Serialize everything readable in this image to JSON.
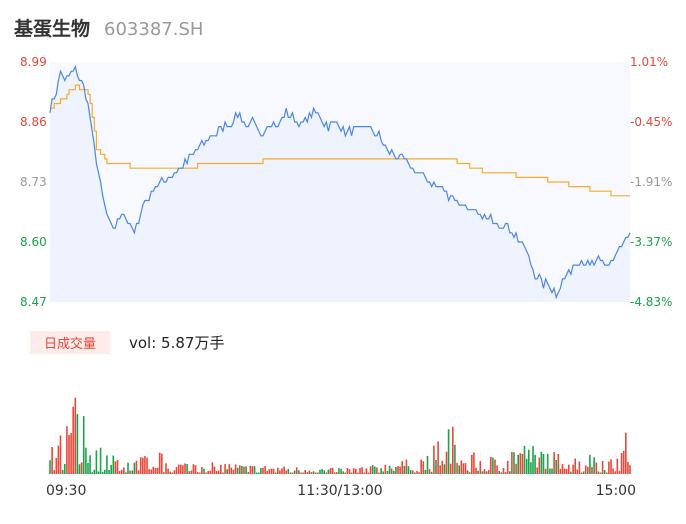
{
  "header": {
    "name": "基蛋生物",
    "code": "603387.SH"
  },
  "volume": {
    "tag": "日成交量",
    "text": "vol: 5.87万手"
  },
  "colors": {
    "price": "#4b86e6",
    "avg": "#f3ad2c",
    "up": "#e8473a",
    "down": "#1aa34a",
    "flat": "#999999"
  },
  "chart_data": {
    "type": "line",
    "title": "",
    "prev_close": 8.9,
    "ylim": [
      8.47,
      8.99
    ],
    "y_ticks": [
      "8.99",
      "8.86",
      "8.73",
      "8.60",
      "8.47"
    ],
    "pct_ticks": [
      "1.01%",
      "-0.45%",
      "-1.91%",
      "-3.37%",
      "-4.83%"
    ],
    "x_ticks": [
      "09:30",
      "11:30/13:00",
      "15:00"
    ],
    "price_keyframes": [
      [
        0,
        8.89
      ],
      [
        3,
        8.93
      ],
      [
        5,
        8.97
      ],
      [
        7,
        8.95
      ],
      [
        9,
        8.96
      ],
      [
        12,
        8.97
      ],
      [
        15,
        8.95
      ],
      [
        18,
        8.9
      ],
      [
        21,
        8.8
      ],
      [
        24,
        8.72
      ],
      [
        28,
        8.64
      ],
      [
        31,
        8.63
      ],
      [
        34,
        8.67
      ],
      [
        36,
        8.65
      ],
      [
        40,
        8.62
      ],
      [
        44,
        8.68
      ],
      [
        50,
        8.72
      ],
      [
        56,
        8.74
      ],
      [
        62,
        8.76
      ],
      [
        68,
        8.79
      ],
      [
        74,
        8.82
      ],
      [
        80,
        8.84
      ],
      [
        86,
        8.86
      ],
      [
        90,
        8.88
      ],
      [
        93,
        8.85
      ],
      [
        96,
        8.86
      ],
      [
        100,
        8.83
      ],
      [
        104,
        8.86
      ],
      [
        108,
        8.85
      ],
      [
        112,
        8.88
      ],
      [
        116,
        8.87
      ],
      [
        119,
        8.85
      ],
      [
        121,
        8.86
      ],
      [
        124,
        8.88
      ],
      [
        128,
        8.87
      ],
      [
        132,
        8.85
      ],
      [
        136,
        8.86
      ],
      [
        140,
        8.84
      ],
      [
        144,
        8.84
      ],
      [
        150,
        8.85
      ],
      [
        156,
        8.83
      ],
      [
        160,
        8.8
      ],
      [
        166,
        8.78
      ],
      [
        172,
        8.76
      ],
      [
        178,
        8.74
      ],
      [
        184,
        8.72
      ],
      [
        190,
        8.7
      ],
      [
        196,
        8.68
      ],
      [
        202,
        8.66
      ],
      [
        208,
        8.65
      ],
      [
        214,
        8.64
      ],
      [
        220,
        8.62
      ],
      [
        226,
        8.58
      ],
      [
        230,
        8.53
      ],
      [
        234,
        8.51
      ],
      [
        238,
        8.5
      ],
      [
        240,
        8.49
      ],
      [
        244,
        8.52
      ],
      [
        248,
        8.55
      ],
      [
        252,
        8.56
      ],
      [
        256,
        8.55
      ],
      [
        260,
        8.56
      ],
      [
        264,
        8.55
      ],
      [
        268,
        8.57
      ],
      [
        272,
        8.6
      ],
      [
        275,
        8.61
      ]
    ],
    "avg_keyframes": [
      [
        0,
        8.89
      ],
      [
        4,
        8.9
      ],
      [
        8,
        8.92
      ],
      [
        12,
        8.94
      ],
      [
        16,
        8.93
      ],
      [
        18,
        8.92
      ],
      [
        20,
        8.87
      ],
      [
        22,
        8.8
      ],
      [
        24,
        8.79
      ],
      [
        28,
        8.77
      ],
      [
        34,
        8.77
      ],
      [
        40,
        8.76
      ],
      [
        60,
        8.76
      ],
      [
        80,
        8.77
      ],
      [
        120,
        8.78
      ],
      [
        140,
        8.78
      ],
      [
        170,
        8.78
      ],
      [
        190,
        8.78
      ],
      [
        196,
        8.77
      ],
      [
        200,
        8.76
      ],
      [
        210,
        8.75
      ],
      [
        230,
        8.74
      ],
      [
        240,
        8.73
      ],
      [
        250,
        8.72
      ],
      [
        260,
        8.71
      ],
      [
        270,
        8.7
      ],
      [
        275,
        8.7
      ]
    ],
    "vol_peaks": [
      [
        0,
        25
      ],
      [
        5,
        40
      ],
      [
        9,
        55
      ],
      [
        12,
        85
      ],
      [
        15,
        70
      ],
      [
        20,
        35
      ],
      [
        28,
        20
      ],
      [
        40,
        15
      ],
      [
        50,
        25
      ],
      [
        60,
        12
      ],
      [
        75,
        15
      ],
      [
        90,
        10
      ],
      [
        110,
        8
      ],
      [
        130,
        6
      ],
      [
        150,
        8
      ],
      [
        170,
        15
      ],
      [
        180,
        20
      ],
      [
        185,
        42
      ],
      [
        190,
        58
      ],
      [
        195,
        18
      ],
      [
        200,
        22
      ],
      [
        210,
        18
      ],
      [
        218,
        28
      ],
      [
        225,
        32
      ],
      [
        232,
        28
      ],
      [
        240,
        22
      ],
      [
        248,
        18
      ],
      [
        258,
        22
      ],
      [
        265,
        16
      ],
      [
        270,
        35
      ],
      [
        272,
        95
      ],
      [
        274,
        40
      ],
      [
        275,
        12
      ]
    ]
  }
}
